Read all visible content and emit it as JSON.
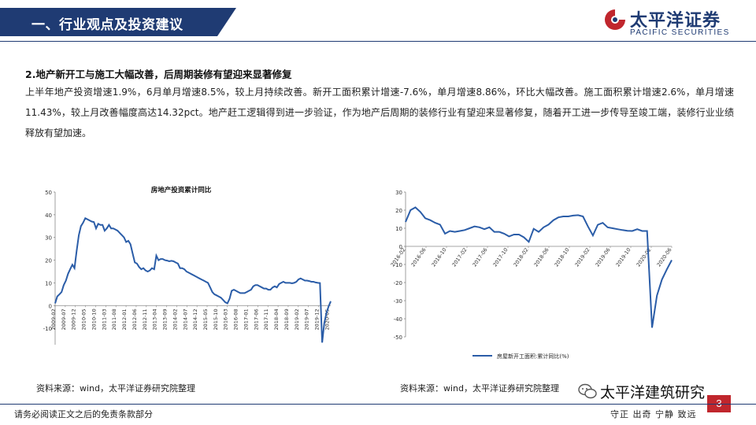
{
  "header": {
    "title": "一、行业观点及投资建议"
  },
  "logo": {
    "cn": "太平洋证券",
    "en": "PACIFIC SECURITIES"
  },
  "section": {
    "heading": "2.地产新开工与施工大幅改善，后周期装修有望迎来显著修复",
    "body": "上半年地产投资增速1.9%，6月单月增速8.5%，较上月持续改善。新开工面积累计增速-7.6%，单月增速8.86%，环比大幅改善。施工面积累计增速2.6%，单月增速11.43%，较上月改善幅度高达14.32pct。地产赶工逻辑得到进一步验证，作为地产后周期的装修行业有望迎来显著修复，随着开工进一步传导至竣工端，装修行业业绩释放有望加速。"
  },
  "chart_data": [
    {
      "type": "line",
      "title": "房地产投资累计同比",
      "ylim": [
        -20,
        50
      ],
      "yticks": [
        -20,
        -10,
        0,
        10,
        20,
        30,
        40,
        50
      ],
      "xtick_labels": [
        "2009-02",
        "2009-07",
        "2009-12",
        "2010-05",
        "2010-10",
        "2011-03",
        "2011-08",
        "2012-01",
        "2012-06",
        "2012-11",
        "2013-04",
        "2013-09",
        "2014-02",
        "2014-07",
        "2014-12",
        "2015-05",
        "2015-10",
        "2016-03",
        "2016-08",
        "2017-01",
        "2017-06",
        "2017-11",
        "2018-04",
        "2018-09",
        "2019-02",
        "2019-07",
        "2019-12",
        "2020-05"
      ],
      "x_start": "2009-02",
      "x_end": "2020-06",
      "color": "#2b5da8",
      "values": [
        1.0,
        4.0,
        5.0,
        6.0,
        9.0,
        11.0,
        14.0,
        16.0,
        18.0,
        16.5,
        24.0,
        31.0,
        35.0,
        36.5,
        38.5,
        38.0,
        37.5,
        37.0,
        36.8,
        34.0,
        36.0,
        35.5,
        35.5,
        33.0,
        34.0,
        35.5,
        34.0,
        34.0,
        33.5,
        33.0,
        32.0,
        31.0,
        30.0,
        28.0,
        28.5,
        27.0,
        23.0,
        19.0,
        18.5,
        17.0,
        16.0,
        16.5,
        15.5,
        15.0,
        15.5,
        16.5,
        16.0,
        22.0,
        20.0,
        20.5,
        20.5,
        20.0,
        19.8,
        19.5,
        19.7,
        19.5,
        19.0,
        18.5,
        16.5,
        16.5,
        16.0,
        15.0,
        14.5,
        14.0,
        13.5,
        13.0,
        12.5,
        12.0,
        11.5,
        11.0,
        10.5,
        10.0,
        8.0,
        6.0,
        5.0,
        4.5,
        4.0,
        3.5,
        2.5,
        1.5,
        1.0,
        3.0,
        6.5,
        7.0,
        6.5,
        6.0,
        5.5,
        5.5,
        5.5,
        6.0,
        6.5,
        7.0,
        8.5,
        9.0,
        9.0,
        8.5,
        8.0,
        7.5,
        7.5,
        7.0,
        7.0,
        8.0,
        8.5,
        8.0,
        9.5,
        10.0,
        10.5,
        10.0,
        10.0,
        10.0,
        9.8,
        10.0,
        10.5,
        11.5,
        12.0,
        11.5,
        11.0,
        11.0,
        10.8,
        10.5,
        10.5,
        10.2,
        10.0,
        9.9,
        -16.3,
        -7.7,
        -3.3,
        -0.3,
        1.9
      ]
    },
    {
      "type": "line",
      "ylim": [
        -50,
        30
      ],
      "yticks": [
        -50,
        -40,
        -30,
        -20,
        -10,
        0,
        10,
        20,
        30
      ],
      "xtick_labels": [
        "2016-02",
        "2016-06",
        "2016-10",
        "2017-02",
        "2017-06",
        "2017-10",
        "2018-02",
        "2018-06",
        "2018-10",
        "2019-02",
        "2019-06",
        "2019-10",
        "2020-02",
        "2020-06"
      ],
      "x_start": "2016-02",
      "x_end": "2020-06",
      "color": "#2b5da8",
      "series": [
        {
          "name": "房屋新开工面积:累计同比(%)"
        }
      ],
      "values": [
        13.5,
        20.0,
        21.5,
        19.0,
        15.5,
        14.5,
        13.0,
        12.0,
        7.0,
        8.5,
        8.0,
        8.5,
        9.0,
        10.0,
        11.0,
        10.5,
        9.5,
        10.5,
        8.0,
        8.0,
        7.0,
        5.5,
        6.5,
        6.5,
        5.0,
        2.5,
        9.7,
        8.0,
        10.5,
        12.0,
        14.5,
        16.0,
        16.5,
        16.5,
        17.0,
        17.2,
        16.5,
        11.0,
        6.0,
        11.9,
        13.0,
        10.5,
        10.0,
        9.5,
        9.0,
        8.6,
        8.5,
        9.5,
        8.5,
        8.5,
        -44.9,
        -27.2,
        -18.4,
        -12.8,
        -7.6
      ]
    }
  ],
  "sources": {
    "left": "资料来源：wind，太平洋证券研究院整理",
    "right": "资料来源：wind，太平洋证券研究院整理"
  },
  "watermark": "太平洋建筑研究",
  "footer": {
    "disclaimer": "请务必阅读正文之后的免责条款部分",
    "motto": "守正 出奇 宁静 致远",
    "page": "3"
  },
  "colors": {
    "brand": "#1f3b73",
    "accent": "#c0262d",
    "line": "#2b5da8"
  }
}
